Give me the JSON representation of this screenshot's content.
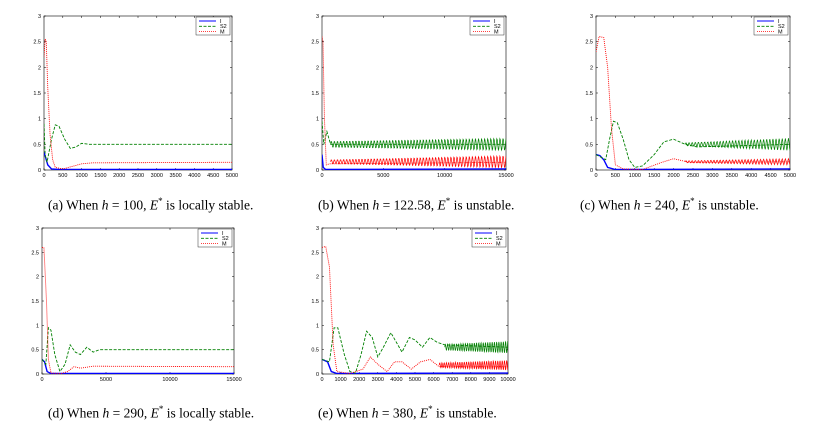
{
  "chart_data": [
    {
      "id": "a",
      "type": "line",
      "caption": {
        "prefix": "(a) When ",
        "var": "h",
        "mid": " = 100, ",
        "evar": "E",
        "sup": "*",
        "suffix": " is locally stable."
      },
      "xlim": [
        0,
        5000
      ],
      "ylim": [
        0,
        3
      ],
      "xticks": [
        "0",
        "500",
        "1000",
        "1500",
        "2000",
        "2500",
        "3000",
        "3500",
        "4000",
        "4500",
        "5000"
      ],
      "xtick_values": [
        0,
        500,
        1000,
        1500,
        2000,
        2500,
        3000,
        3500,
        4000,
        4500,
        5000
      ],
      "yticks": [
        "0",
        "0.5",
        "1",
        "1.5",
        "2",
        "2.5",
        "3"
      ],
      "ytick_values": [
        0,
        0.5,
        1,
        1.5,
        2,
        2.5,
        3
      ],
      "legend": [
        "I",
        "S2",
        "M"
      ],
      "series": [
        {
          "name": "I",
          "color": "#0000ff",
          "style": "solid",
          "points": [
            [
              0,
              0.35
            ],
            [
              40,
              0.25
            ],
            [
              100,
              0.1
            ],
            [
              200,
              0.02
            ],
            [
              400,
              0.01
            ],
            [
              5000,
              0.01
            ]
          ]
        },
        {
          "name": "S2",
          "color": "#008000",
          "style": "dash",
          "points": [
            [
              0,
              0.9
            ],
            [
              30,
              0.3
            ],
            [
              80,
              0.15
            ],
            [
              200,
              0.6
            ],
            [
              300,
              0.88
            ],
            [
              400,
              0.85
            ],
            [
              550,
              0.6
            ],
            [
              700,
              0.42
            ],
            [
              850,
              0.45
            ],
            [
              1000,
              0.52
            ],
            [
              1200,
              0.5
            ],
            [
              5000,
              0.5
            ]
          ]
        },
        {
          "name": "M",
          "color": "#ff0000",
          "style": "dot",
          "points": [
            [
              0,
              2.2
            ],
            [
              30,
              2.55
            ],
            [
              60,
              2.5
            ],
            [
              100,
              1.6
            ],
            [
              160,
              0.7
            ],
            [
              230,
              0.2
            ],
            [
              300,
              0.05
            ],
            [
              500,
              0.02
            ],
            [
              800,
              0.08
            ],
            [
              1000,
              0.12
            ],
            [
              1300,
              0.14
            ],
            [
              5000,
              0.15
            ]
          ]
        }
      ]
    },
    {
      "id": "b",
      "type": "line",
      "caption": {
        "prefix": "(b) When ",
        "var": "h",
        "mid": " = 122.58, ",
        "evar": "E",
        "sup": "*",
        "suffix": " is unstable."
      },
      "xlim": [
        0,
        15000
      ],
      "ylim": [
        0,
        3
      ],
      "xticks": [
        "0",
        "5000",
        "10000",
        "15000"
      ],
      "xtick_values": [
        0,
        5000,
        10000,
        15000
      ],
      "yticks": [
        "0",
        "0.5",
        "1",
        "1.5",
        "2",
        "2.5",
        "3"
      ],
      "ytick_values": [
        0,
        0.5,
        1,
        1.5,
        2,
        2.5,
        3
      ],
      "legend": [
        "I",
        "S2",
        "M"
      ],
      "series": [
        {
          "name": "I",
          "color": "#0000ff",
          "style": "solid",
          "points": [
            [
              0,
              0.3
            ],
            [
              100,
              0.05
            ],
            [
              300,
              0.01
            ],
            [
              15000,
              0.02
            ]
          ]
        },
        {
          "name": "S2",
          "color": "#008000",
          "style": "dash",
          "points": [
            [
              0,
              0.95
            ],
            [
              150,
              0.5
            ],
            [
              400,
              0.75
            ],
            [
              700,
              0.5
            ],
            [
              15000,
              0.5
            ]
          ]
        },
        {
          "name": "M",
          "color": "#ff0000",
          "style": "dot",
          "points": [
            [
              0,
              2.6
            ],
            [
              80,
              2.5
            ],
            [
              200,
              1.0
            ],
            [
              350,
              0.1
            ],
            [
              600,
              0.12
            ],
            [
              15000,
              0.15
            ]
          ]
        }
      ],
      "oscillations": [
        {
          "series": "S2",
          "from": 700,
          "to": 15000,
          "center": 0.5,
          "amp_start": 0.06,
          "amp_end": 0.12,
          "period": 250
        },
        {
          "series": "M",
          "from": 700,
          "to": 15000,
          "center": 0.16,
          "amp_start": 0.04,
          "amp_end": 0.12,
          "period": 250
        }
      ]
    },
    {
      "id": "c",
      "type": "line",
      "caption": {
        "prefix": "(c) When ",
        "var": "h",
        "mid": " = 240, ",
        "evar": "E",
        "sup": "*",
        "suffix": " is unstable."
      },
      "xlim": [
        0,
        5000
      ],
      "ylim": [
        0,
        3
      ],
      "xticks": [
        "0",
        "500",
        "1000",
        "1500",
        "2000",
        "2500",
        "3000",
        "3500",
        "4000",
        "4500",
        "5000"
      ],
      "xtick_values": [
        0,
        500,
        1000,
        1500,
        2000,
        2500,
        3000,
        3500,
        4000,
        4500,
        5000
      ],
      "yticks": [
        "0",
        "0.5",
        "1",
        "1.5",
        "2",
        "2.5",
        "3"
      ],
      "ytick_values": [
        0,
        0.5,
        1,
        1.5,
        2,
        2.5,
        3
      ],
      "legend": [
        "I",
        "S2",
        "M"
      ],
      "series": [
        {
          "name": "I",
          "color": "#0000ff",
          "style": "solid",
          "points": [
            [
              0,
              0.3
            ],
            [
              100,
              0.28
            ],
            [
              200,
              0.2
            ],
            [
              300,
              0.05
            ],
            [
              500,
              0.01
            ],
            [
              5000,
              0.02
            ]
          ]
        },
        {
          "name": "S2",
          "color": "#008000",
          "style": "dash",
          "points": [
            [
              0,
              0.3
            ],
            [
              250,
              0.2
            ],
            [
              350,
              0.6
            ],
            [
              450,
              0.95
            ],
            [
              550,
              0.92
            ],
            [
              700,
              0.6
            ],
            [
              850,
              0.2
            ],
            [
              1000,
              0.05
            ],
            [
              1200,
              0.08
            ],
            [
              1500,
              0.3
            ],
            [
              1750,
              0.55
            ],
            [
              2000,
              0.6
            ],
            [
              2300,
              0.5
            ],
            [
              2600,
              0.45
            ],
            [
              5000,
              0.5
            ]
          ]
        },
        {
          "name": "M",
          "color": "#ff0000",
          "style": "dot",
          "points": [
            [
              0,
              2.3
            ],
            [
              80,
              2.6
            ],
            [
              200,
              2.58
            ],
            [
              300,
              2.0
            ],
            [
              400,
              0.8
            ],
            [
              500,
              0.1
            ],
            [
              700,
              0.02
            ],
            [
              1200,
              0.01
            ],
            [
              1700,
              0.15
            ],
            [
              2000,
              0.22
            ],
            [
              2400,
              0.15
            ],
            [
              5000,
              0.16
            ]
          ]
        }
      ],
      "oscillations": [
        {
          "series": "S2",
          "from": 2300,
          "to": 5000,
          "center": 0.5,
          "amp_start": 0.03,
          "amp_end": 0.12,
          "period": 80
        },
        {
          "series": "M",
          "from": 2300,
          "to": 5000,
          "center": 0.16,
          "amp_start": 0.02,
          "amp_end": 0.06,
          "period": 80
        }
      ]
    },
    {
      "id": "d",
      "type": "line",
      "caption": {
        "prefix": "(d) When ",
        "var": "h",
        "mid": " = 290, ",
        "evar": "E",
        "sup": "*",
        "suffix": " is locally stable."
      },
      "xlim": [
        0,
        15000
      ],
      "ylim": [
        0,
        3
      ],
      "xticks": [
        "0",
        "5000",
        "10000",
        "15000"
      ],
      "xtick_values": [
        0,
        5000,
        10000,
        15000
      ],
      "yticks": [
        "0",
        "0.5",
        "1",
        "1.5",
        "2",
        "2.5",
        "3"
      ],
      "ytick_values": [
        0,
        0.5,
        1,
        1.5,
        2,
        2.5,
        3
      ],
      "legend": [
        "I",
        "S2",
        "M"
      ],
      "series": [
        {
          "name": "I",
          "color": "#0000ff",
          "style": "solid",
          "points": [
            [
              0,
              0.3
            ],
            [
              200,
              0.25
            ],
            [
              400,
              0.05
            ],
            [
              700,
              0.01
            ],
            [
              15000,
              0.01
            ]
          ]
        },
        {
          "name": "S2",
          "color": "#008000",
          "style": "dash",
          "points": [
            [
              0,
              0.3
            ],
            [
              300,
              0.2
            ],
            [
              500,
              0.95
            ],
            [
              700,
              0.9
            ],
            [
              1000,
              0.4
            ],
            [
              1400,
              0.05
            ],
            [
              1800,
              0.2
            ],
            [
              2200,
              0.6
            ],
            [
              2600,
              0.45
            ],
            [
              3000,
              0.4
            ],
            [
              3500,
              0.55
            ],
            [
              4000,
              0.45
            ],
            [
              4500,
              0.5
            ],
            [
              5500,
              0.5
            ],
            [
              15000,
              0.5
            ]
          ]
        },
        {
          "name": "M",
          "color": "#ff0000",
          "style": "dot",
          "points": [
            [
              0,
              2.6
            ],
            [
              150,
              2.6
            ],
            [
              350,
              1.5
            ],
            [
              500,
              0.3
            ],
            [
              700,
              0.02
            ],
            [
              1500,
              0.01
            ],
            [
              2000,
              0.05
            ],
            [
              2500,
              0.15
            ],
            [
              3000,
              0.12
            ],
            [
              4000,
              0.16
            ],
            [
              15000,
              0.15
            ]
          ]
        }
      ]
    },
    {
      "id": "e",
      "type": "line",
      "caption": {
        "prefix": "(e) When ",
        "var": "h",
        "mid": " = 380, ",
        "evar": "E",
        "sup": "*",
        "suffix": " is unstable."
      },
      "xlim": [
        0,
        10000
      ],
      "ylim": [
        0,
        3
      ],
      "xticks": [
        "0",
        "1000",
        "2000",
        "3000",
        "4000",
        "5000",
        "6000",
        "7000",
        "8000",
        "9000",
        "10000"
      ],
      "xtick_values": [
        0,
        1000,
        2000,
        3000,
        4000,
        5000,
        6000,
        7000,
        8000,
        9000,
        10000
      ],
      "yticks": [
        "0",
        "0.5",
        "1",
        "1.5",
        "2",
        "2.5",
        "3"
      ],
      "ytick_values": [
        0,
        0.5,
        1,
        1.5,
        2,
        2.5,
        3
      ],
      "legend": [
        "I",
        "S2",
        "M"
      ],
      "series": [
        {
          "name": "I",
          "color": "#0000ff",
          "style": "solid",
          "points": [
            [
              0,
              0.3
            ],
            [
              300,
              0.25
            ],
            [
              500,
              0.05
            ],
            [
              800,
              0.01
            ],
            [
              10000,
              0.02
            ]
          ]
        },
        {
          "name": "S2",
          "color": "#008000",
          "style": "dash",
          "points": [
            [
              0,
              0.3
            ],
            [
              400,
              0.25
            ],
            [
              650,
              0.95
            ],
            [
              850,
              0.95
            ],
            [
              1200,
              0.4
            ],
            [
              1500,
              0.05
            ],
            [
              1800,
              0.02
            ],
            [
              2100,
              0.4
            ],
            [
              2400,
              0.88
            ],
            [
              2700,
              0.75
            ],
            [
              3000,
              0.35
            ],
            [
              3300,
              0.55
            ],
            [
              3700,
              0.85
            ],
            [
              4000,
              0.65
            ],
            [
              4300,
              0.45
            ],
            [
              4700,
              0.75
            ],
            [
              5000,
              0.7
            ],
            [
              5400,
              0.55
            ],
            [
              5800,
              0.75
            ],
            [
              6200,
              0.65
            ],
            [
              6600,
              0.6
            ],
            [
              10000,
              0.55
            ]
          ]
        },
        {
          "name": "M",
          "color": "#ff0000",
          "style": "dot",
          "points": [
            [
              0,
              2.6
            ],
            [
              200,
              2.62
            ],
            [
              400,
              2.2
            ],
            [
              600,
              0.6
            ],
            [
              800,
              0.05
            ],
            [
              1500,
              0.01
            ],
            [
              2200,
              0.1
            ],
            [
              2600,
              0.35
            ],
            [
              3000,
              0.2
            ],
            [
              3500,
              0.05
            ],
            [
              3900,
              0.25
            ],
            [
              4300,
              0.25
            ],
            [
              4800,
              0.1
            ],
            [
              5300,
              0.25
            ],
            [
              5800,
              0.3
            ],
            [
              6300,
              0.15
            ],
            [
              10000,
              0.15
            ]
          ]
        }
      ],
      "oscillations": [
        {
          "series": "S2",
          "from": 6600,
          "to": 10000,
          "center": 0.55,
          "amp_start": 0.06,
          "amp_end": 0.12,
          "period": 120
        },
        {
          "series": "M",
          "from": 6300,
          "to": 10000,
          "center": 0.18,
          "amp_start": 0.05,
          "amp_end": 0.1,
          "period": 120
        }
      ]
    }
  ]
}
